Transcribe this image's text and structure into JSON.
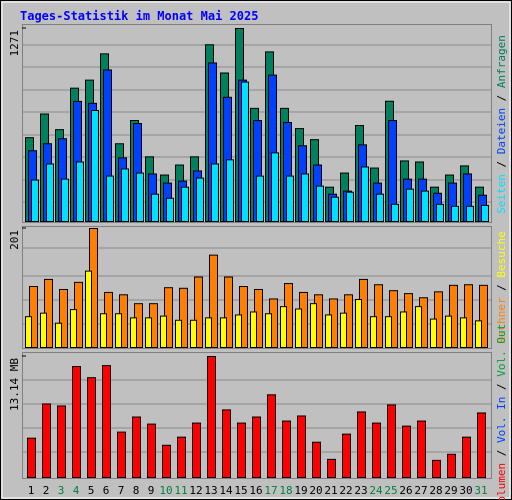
{
  "chart_data": {
    "type": "bar",
    "title": "Tages-Statistik im Monat Mai 2025",
    "categories": [
      "1",
      "2",
      "3",
      "4",
      "5",
      "6",
      "7",
      "8",
      "9",
      "10",
      "11",
      "12",
      "13",
      "14",
      "15",
      "16",
      "17",
      "18",
      "19",
      "20",
      "21",
      "22",
      "23",
      "24",
      "25",
      "26",
      "27",
      "28",
      "29",
      "30",
      "31"
    ],
    "category_colors": [
      "#000000",
      "#000000",
      "#008040",
      "#008040",
      "#000000",
      "#000000",
      "#000000",
      "#000000",
      "#000000",
      "#008040",
      "#008040",
      "#000000",
      "#000000",
      "#000000",
      "#000000",
      "#000000",
      "#008040",
      "#008040",
      "#000000",
      "#000000",
      "#000000",
      "#000000",
      "#000000",
      "#008040",
      "#008040",
      "#000000",
      "#000000",
      "#000000",
      "#000000",
      "#000000",
      "#008040"
    ],
    "legend_separator": " / ",
    "panels": [
      {
        "ylim": [
          0,
          1271
        ],
        "yticks": [
          1271
        ],
        "series": [
          {
            "name": "Anfragen",
            "color": "#00805c",
            "values": [
              552,
              708,
              605,
              878,
              931,
              1104,
              512,
              665,
              426,
              306,
              372,
              426,
              1164,
              978,
              1271,
              745,
              1117,
              745,
              612,
              539,
              226,
              319,
              632,
              352,
              792,
              399,
              392,
              226,
              306,
              366,
              226
            ]
          },
          {
            "name": "Dateien",
            "color": "#0040ff",
            "values": [
              466,
              512,
              545,
              791,
              778,
              998,
              419,
              645,
              313,
              253,
              266,
              333,
              1044,
              818,
              931,
              665,
              964,
              652,
              499,
              372,
              180,
              200,
              505,
              253,
              665,
              279,
              279,
              186,
              253,
              313,
              173
            ]
          },
          {
            "name": "Seiten",
            "color": "#00e0ff",
            "values": [
              273,
              379,
              279,
              392,
              731,
              299,
              346,
              319,
              180,
              153,
              226,
              286,
              379,
              406,
              918,
              299,
              452,
              299,
              313,
              233,
              160,
              193,
              359,
              180,
              113,
              213,
              200,
              113,
              100,
              100,
              106
            ]
          }
        ]
      },
      {
        "ylim": [
          0,
          201
        ],
        "yticks": [
          201
        ],
        "series": [
          {
            "name": "Rechner",
            "color": "#ff8000",
            "values": [
              103,
              115,
              98,
              110,
              201,
              93,
              89,
              74,
              74,
              101,
              100,
              119,
              156,
              119,
              103,
              98,
              82,
              108,
              93,
              89,
              82,
              89,
              115,
              106,
              96,
              91,
              84,
              94,
              105,
              106,
              105
            ]
          },
          {
            "name": "Besuche",
            "color": "#ffff00",
            "values": [
              52,
              58,
              41,
              64,
              129,
              57,
              57,
              50,
              50,
              53,
              46,
              46,
              50,
              50,
              55,
              60,
              57,
              69,
              65,
              74,
              55,
              58,
              81,
              52,
              52,
              60,
              69,
              48,
              53,
              50,
              45
            ]
          }
        ]
      },
      {
        "ylim": [
          0,
          13.14
        ],
        "yticks": [
          {
            "value": 13.14,
            "label": "13.14 MB"
          }
        ],
        "series": [
          {
            "name": "Volumen",
            "color": "#ff0000",
            "values": [
              4.27,
              7.99,
              7.77,
              12.05,
              10.84,
              12.15,
              4.93,
              6.57,
              5.8,
              3.5,
              4.38,
              5.91,
              13.14,
              7.34,
              5.91,
              6.57,
              8.98,
              6.13,
              6.68,
              3.83,
              1.97,
              4.71,
              7.12,
              5.91,
              7.88,
              5.58,
              6.13,
              1.86,
              2.52,
              4.38,
              7.01
            ]
          }
        ],
        "extra_legend": [
          {
            "name": "Vol. In",
            "color": "#0040ff"
          },
          {
            "name": "Vol. Out",
            "color": "#00a040"
          }
        ]
      }
    ]
  }
}
